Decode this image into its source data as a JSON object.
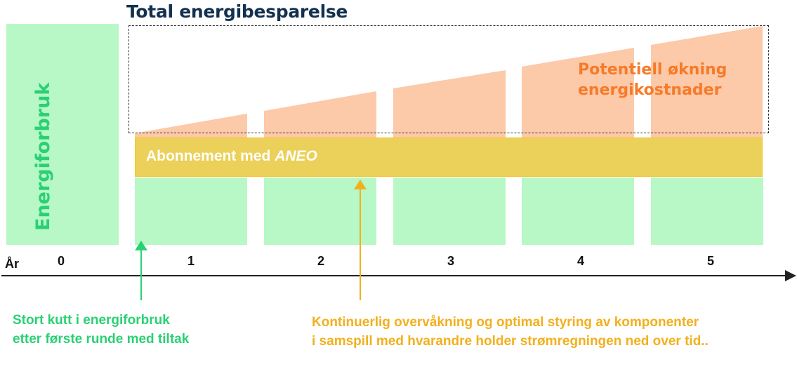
{
  "title": "Total energibesparelse",
  "y_axis_label": "Energiforbruk",
  "potential_label_line1": "Potentiell økning",
  "potential_label_line2": "energikostnader",
  "band_label_prefix": "Abonnement med ",
  "band_label_brand": "ANEO",
  "x_axis_label": "År",
  "years": [
    "0",
    "1",
    "2",
    "3",
    "4",
    "5"
  ],
  "note_left_line1": "Stort kutt i energiforbruk",
  "note_left_line2": "etter første runde med tiltak",
  "note_right_line1": "Kontinuerlig overvåkning og optimal styring av komponenter",
  "note_right_line2": "i samspill med hvarandre holder strømregningen ned over tid..",
  "colors": {
    "title": "#14304f",
    "energy_green": "#2bd074",
    "bar_green": "#b7f8c6",
    "cost_orange": "#f77a28",
    "cost_fill": "#fcc9a9",
    "band_yellow": "#e8c83c",
    "note_yellow": "#f2b01e"
  }
}
